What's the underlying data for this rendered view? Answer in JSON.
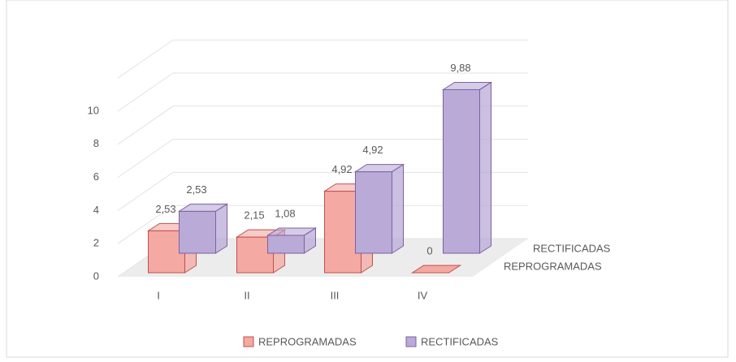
{
  "chart_data": {
    "type": "bar3d",
    "categories": [
      "I",
      "II",
      "III",
      "IV"
    ],
    "series": [
      {
        "name": "REPROGRAMADAS",
        "color": "#f4a9a3",
        "values": [
          2.53,
          2.15,
          4.92,
          0
        ],
        "value_labels": [
          "2,53",
          "2,15",
          "4,92",
          "0"
        ]
      },
      {
        "name": "RECTIFICADAS",
        "color": "#b9aad8",
        "values": [
          2.53,
          1.08,
          4.92,
          9.88
        ],
        "value_labels": [
          "2,53",
          "1,08",
          "4,92",
          "9,88"
        ]
      }
    ],
    "ylim": [
      0,
      12
    ],
    "yticks": [
      0,
      2,
      4,
      6,
      8,
      10
    ],
    "grid": true,
    "legend": "bottom"
  }
}
